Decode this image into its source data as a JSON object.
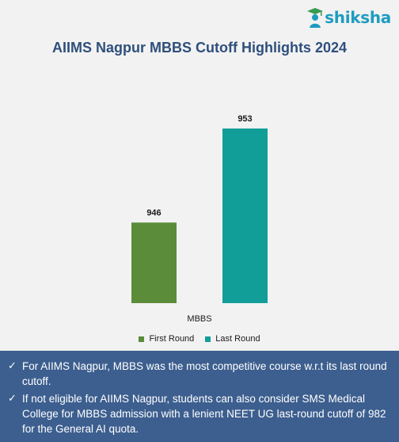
{
  "brand": {
    "name": "shiksha",
    "color": "#1e9cc0"
  },
  "chart_data": {
    "type": "bar",
    "title": "AIIMS Nagpur MBBS Cutoff Highlights 2024",
    "categories": [
      "MBBS"
    ],
    "series": [
      {
        "name": "First Round",
        "values": [
          946
        ],
        "color": "#5b8c3a"
      },
      {
        "name": "Last Round",
        "values": [
          953
        ],
        "color": "#119e99"
      }
    ],
    "xlabel": "",
    "ylabel": "",
    "ylim": [
      940,
      954
    ],
    "grid": false,
    "legend_position": "bottom"
  },
  "notes": [
    "For AIIMS Nagpur, MBBS was the most competitive course w.r.t its last round cutoff.",
    "If not eligible for AIIMS Nagpur, students can also consider SMS Medical College for MBBS admission with a lenient NEET UG last-round cutoff of 982 for the General AI quota."
  ],
  "check_icon": "✓"
}
